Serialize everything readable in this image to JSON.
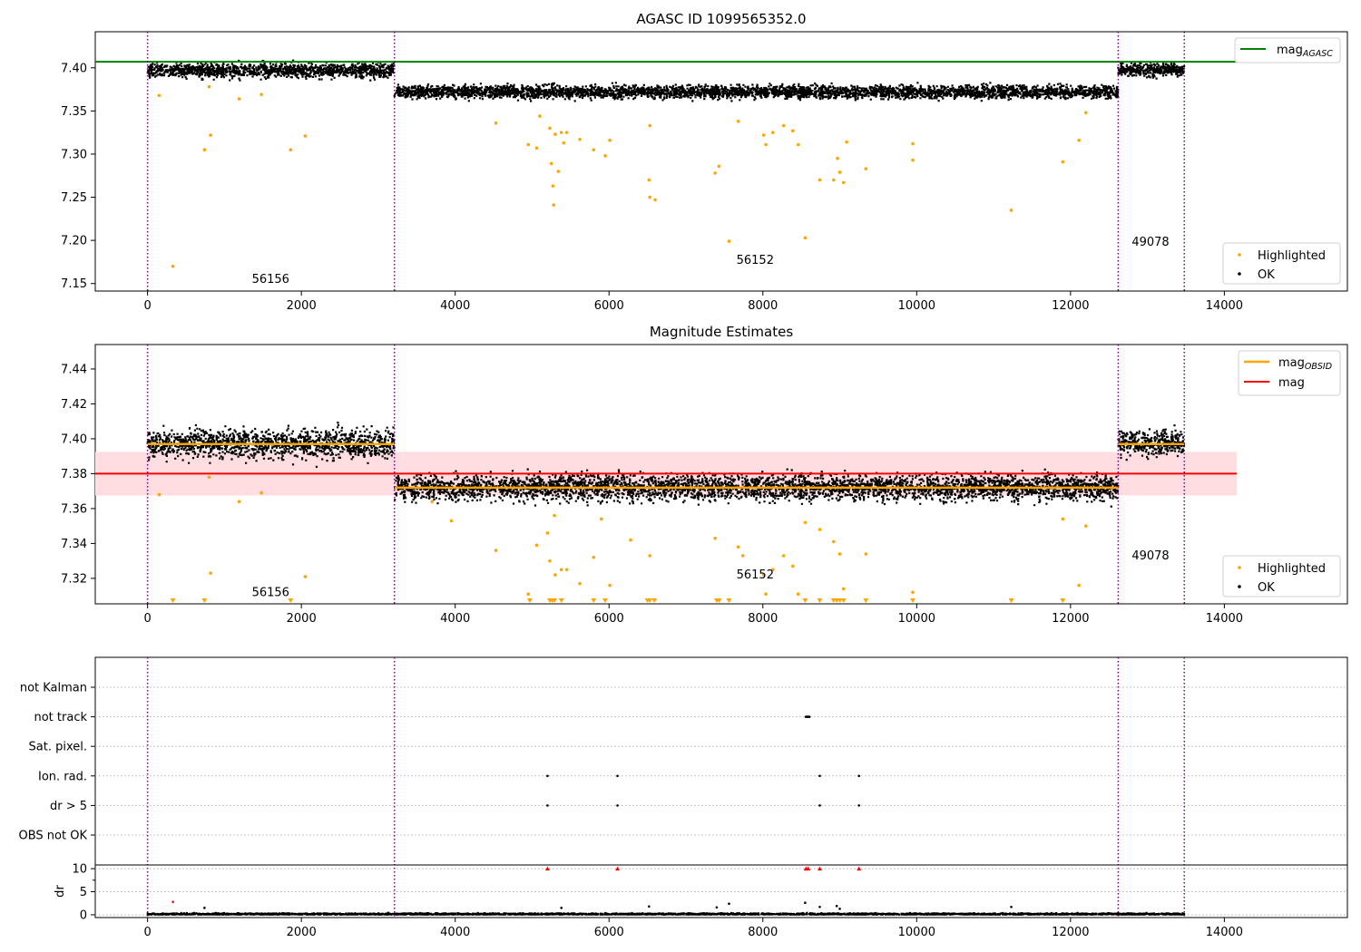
{
  "chart_data": [
    {
      "type": "scatter",
      "title": "AGASC ID 1099565352.0",
      "xlabel": "",
      "ylabel": "",
      "xlim": [
        -680,
        15600
      ],
      "ylim": [
        7.1413,
        7.4418
      ],
      "xticks": [
        0,
        2000,
        4000,
        6000,
        8000,
        10000,
        12000,
        14000
      ],
      "yticks": [
        7.15,
        7.2,
        7.25,
        7.3,
        7.35,
        7.4
      ],
      "ytick_decimals": 2,
      "obs_boundaries": [
        0,
        3210,
        12620,
        13480
      ],
      "obs_labels": [
        {
          "text": "56156",
          "x": 1600,
          "y": 7.155
        },
        {
          "text": "56152",
          "x": 7900,
          "y": 7.177
        },
        {
          "text": "49078",
          "x": 13040,
          "y": 7.198
        }
      ],
      "reference_lines": [
        {
          "name": "mag_AGASC",
          "y": 7.407,
          "x": [
            -680,
            14160
          ],
          "color": "#008000"
        }
      ],
      "segment_means": [],
      "obs_bands": [],
      "series": [
        {
          "name": "Highlighted",
          "color": "#ffa500"
        },
        {
          "name": "OK",
          "color": "#000000"
        }
      ],
      "ok_segments": [
        {
          "x": [
            0,
            3210
          ],
          "center": 7.397,
          "spread": 0.009
        },
        {
          "x": [
            3210,
            12620
          ],
          "center": 7.372,
          "spread": 0.008
        },
        {
          "x": [
            12620,
            13480
          ],
          "center": 7.398,
          "spread": 0.008
        }
      ],
      "highlighted_points": [
        [
          330,
          7.17
        ],
        [
          150,
          7.368
        ],
        [
          740,
          7.305
        ],
        [
          800,
          7.378
        ],
        [
          820,
          7.322
        ],
        [
          1190,
          7.364
        ],
        [
          1480,
          7.369
        ],
        [
          1860,
          7.305
        ],
        [
          2050,
          7.321
        ],
        [
          4530,
          7.336
        ],
        [
          4950,
          7.311
        ],
        [
          5060,
          7.307
        ],
        [
          5100,
          7.344
        ],
        [
          5230,
          7.33
        ],
        [
          5250,
          7.289
        ],
        [
          5270,
          7.263
        ],
        [
          5280,
          7.241
        ],
        [
          5300,
          7.323
        ],
        [
          5340,
          7.28
        ],
        [
          5380,
          7.325
        ],
        [
          5410,
          7.313
        ],
        [
          5450,
          7.325
        ],
        [
          5620,
          7.317
        ],
        [
          5800,
          7.305
        ],
        [
          5950,
          7.298
        ],
        [
          6010,
          7.316
        ],
        [
          6520,
          7.27
        ],
        [
          6530,
          7.25
        ],
        [
          6530,
          7.333
        ],
        [
          6600,
          7.247
        ],
        [
          7380,
          7.278
        ],
        [
          7430,
          7.286
        ],
        [
          7560,
          7.199
        ],
        [
          7680,
          7.338
        ],
        [
          8010,
          7.322
        ],
        [
          8040,
          7.311
        ],
        [
          8130,
          7.325
        ],
        [
          8270,
          7.333
        ],
        [
          8390,
          7.327
        ],
        [
          8460,
          7.311
        ],
        [
          8550,
          7.203
        ],
        [
          8740,
          7.27
        ],
        [
          8920,
          7.27
        ],
        [
          8970,
          7.295
        ],
        [
          9000,
          7.279
        ],
        [
          9050,
          7.267
        ],
        [
          9090,
          7.314
        ],
        [
          9340,
          7.283
        ],
        [
          9950,
          7.312
        ],
        [
          9950,
          7.293
        ],
        [
          11230,
          7.235
        ],
        [
          11900,
          7.291
        ],
        [
          12110,
          7.316
        ],
        [
          12200,
          7.348
        ]
      ],
      "legend": {
        "placement": "upper right"
      }
    },
    {
      "type": "scatter",
      "title": "Magnitude Estimates",
      "xlabel": "",
      "ylabel": "",
      "xlim": [
        -680,
        15600
      ],
      "ylim": [
        7.3054,
        7.454
      ],
      "xticks": [
        0,
        2000,
        4000,
        6000,
        8000,
        10000,
        12000,
        14000
      ],
      "yticks": [
        7.32,
        7.34,
        7.36,
        7.38,
        7.4,
        7.42,
        7.44
      ],
      "ytick_decimals": 2,
      "obs_boundaries": [
        0,
        3210,
        12620,
        13480
      ],
      "obs_labels": [
        {
          "text": "56156",
          "x": 1600,
          "y": 7.312
        },
        {
          "text": "56152",
          "x": 7900,
          "y": 7.322
        },
        {
          "text": "49078",
          "x": 13040,
          "y": 7.333
        }
      ],
      "reference_lines": [
        {
          "name": "mag",
          "y": 7.38,
          "x": [
            -680,
            14160
          ],
          "color": "#ff0000"
        }
      ],
      "band": {
        "y0": 7.3675,
        "y1": 7.3925,
        "x": [
          -680,
          14160
        ],
        "color": "#ffdde1"
      },
      "segment_means": [
        {
          "name": "mag_OBSID",
          "x": [
            0,
            3210
          ],
          "y": 7.397
        },
        {
          "name": "mag_OBSID",
          "x": [
            3210,
            12620
          ],
          "y": 7.372
        },
        {
          "name": "mag_OBSID",
          "x": [
            12620,
            13480
          ],
          "y": 7.397
        }
      ],
      "series": [
        {
          "name": "Highlighted",
          "color": "#ffa500"
        },
        {
          "name": "OK",
          "color": "#000000"
        }
      ],
      "ok_segments": [
        {
          "x": [
            0,
            3210
          ],
          "center": 7.397,
          "spread": 0.009
        },
        {
          "x": [
            3210,
            12620
          ],
          "center": 7.372,
          "spread": 0.008
        },
        {
          "x": [
            12620,
            13480
          ],
          "center": 7.398,
          "spread": 0.008
        }
      ],
      "highlighted_points": [
        [
          150,
          7.368
        ],
        [
          800,
          7.378
        ],
        [
          820,
          7.323
        ],
        [
          1190,
          7.364
        ],
        [
          1480,
          7.369
        ],
        [
          2050,
          7.321
        ],
        [
          3700,
          7.364
        ],
        [
          3950,
          7.353
        ],
        [
          4530,
          7.336
        ],
        [
          4950,
          7.311
        ],
        [
          5060,
          7.339
        ],
        [
          5200,
          7.346
        ],
        [
          5230,
          7.33
        ],
        [
          5290,
          7.356
        ],
        [
          5300,
          7.322
        ],
        [
          5380,
          7.325
        ],
        [
          5450,
          7.325
        ],
        [
          5620,
          7.317
        ],
        [
          5800,
          7.332
        ],
        [
          5900,
          7.354
        ],
        [
          6010,
          7.316
        ],
        [
          6280,
          7.342
        ],
        [
          6530,
          7.333
        ],
        [
          7380,
          7.343
        ],
        [
          7680,
          7.338
        ],
        [
          7740,
          7.333
        ],
        [
          8010,
          7.322
        ],
        [
          8040,
          7.311
        ],
        [
          8130,
          7.325
        ],
        [
          8270,
          7.333
        ],
        [
          8390,
          7.327
        ],
        [
          8460,
          7.311
        ],
        [
          8550,
          7.352
        ],
        [
          8740,
          7.348
        ],
        [
          8920,
          7.341
        ],
        [
          9000,
          7.334
        ],
        [
          9050,
          7.314
        ],
        [
          9340,
          7.334
        ],
        [
          9950,
          7.312
        ],
        [
          11900,
          7.354
        ],
        [
          12110,
          7.316
        ],
        [
          12200,
          7.35
        ]
      ],
      "below_range_markers": [
        330,
        740,
        1860,
        4970,
        5230,
        5260,
        5290,
        5380,
        5800,
        5950,
        6500,
        6530,
        6590,
        7400,
        7430,
        7560,
        8550,
        8740,
        8920,
        8960,
        9000,
        9050,
        9340,
        9950,
        11230,
        11900
      ],
      "legend": {
        "placement": "upper right"
      }
    },
    {
      "type": "scatter",
      "title": "",
      "xlabel": "",
      "ylabel": "",
      "xlim": [
        -680,
        15600
      ],
      "obs_boundaries": [
        0,
        3210,
        12620,
        13480
      ],
      "categories": [
        "not Kalman",
        "not track",
        "Sat. pixel.",
        "Ion. rad.",
        "dr > 5",
        "OBS not OK"
      ],
      "flag_points": [
        {
          "category": "not track",
          "x": [
            8560,
            8575,
            8590,
            8605
          ]
        },
        {
          "category": "Ion. rad.",
          "x": [
            5200,
            6110,
            8740,
            9250
          ]
        },
        {
          "category": "dr > 5",
          "x": [
            5200,
            6110,
            8740,
            9250
          ]
        }
      ]
    },
    {
      "type": "scatter",
      "title": "",
      "xlabel": "",
      "ylabel": "dr",
      "xlim": [
        -680,
        15600
      ],
      "ylim": [
        -0.6,
        10.8
      ],
      "xticks": [
        0,
        2000,
        4000,
        6000,
        8000,
        10000,
        12000,
        14000
      ],
      "yticks": [
        0,
        5,
        10
      ],
      "ytick_decimals": 0,
      "obs_boundaries": [
        0,
        3210,
        12620,
        13480
      ],
      "ok_segments": [
        {
          "x": [
            0,
            13480
          ],
          "center": 0.15,
          "spread": 0.2
        }
      ],
      "outlier_points": [
        [
          330,
          2.8
        ],
        [
          740,
          1.5
        ],
        [
          5380,
          1.5
        ],
        [
          6520,
          1.8
        ],
        [
          7400,
          1.6
        ],
        [
          7560,
          2.4
        ],
        [
          8550,
          2.6
        ],
        [
          8740,
          1.7
        ],
        [
          8960,
          1.9
        ],
        [
          9000,
          1.3
        ],
        [
          11230,
          1.7
        ]
      ],
      "flagged_points": [
        5200,
        6110,
        8560,
        8590,
        8740,
        9250
      ]
    }
  ]
}
